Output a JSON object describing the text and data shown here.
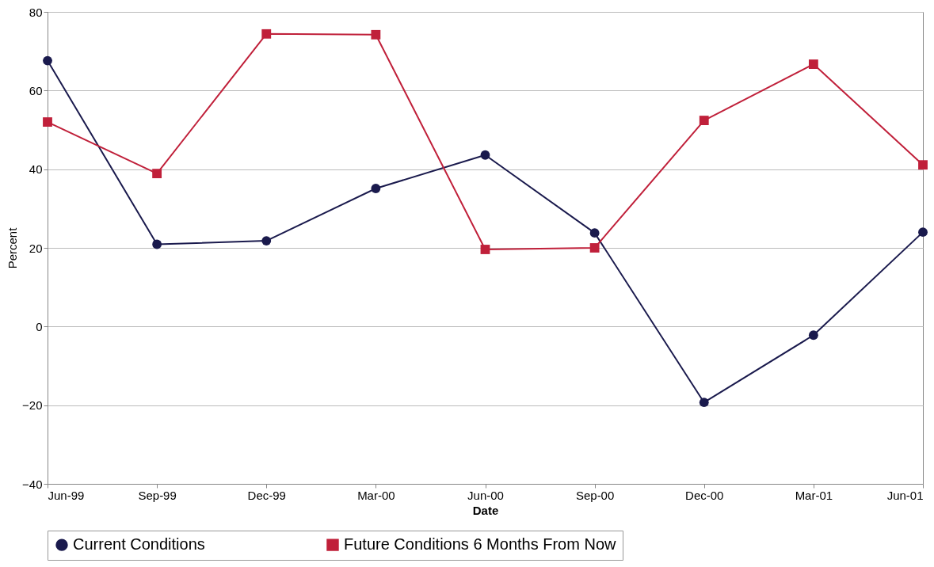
{
  "chart_data": {
    "type": "line",
    "xlabel": "Date",
    "ylabel": "Percent",
    "categories": [
      "Jun-99",
      "Sep-99",
      "Dec-99",
      "Mar-00",
      "Jun-00",
      "Sep-00",
      "Dec-00",
      "Mar-01",
      "Jun-01"
    ],
    "series": [
      {
        "name": "Current Conditions",
        "color": "#1a1a4d",
        "marker": "circle",
        "values": [
          67.6,
          20.9,
          21.8,
          35.1,
          43.6,
          23.8,
          -19.3,
          -2.2,
          24.0
        ]
      },
      {
        "name": "Future Conditions 6 Months From Now",
        "color": "#c0203a",
        "marker": "square",
        "values": [
          52.0,
          38.9,
          74.4,
          74.2,
          19.6,
          20.0,
          52.4,
          66.7,
          41.1
        ]
      }
    ],
    "ylim": [
      -40,
      80
    ],
    "yticks": [
      -40,
      -20,
      0,
      20,
      40,
      60,
      80
    ],
    "grid": "y",
    "legend": "bottom",
    "line_style": "solid"
  }
}
